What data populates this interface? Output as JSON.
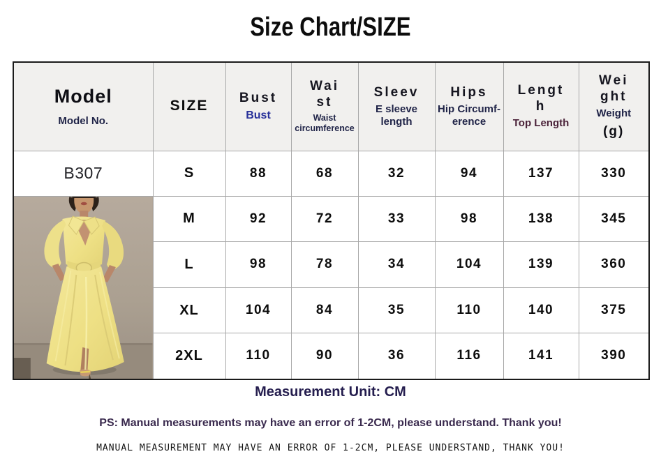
{
  "title": "Size Chart/SIZE",
  "colors": {
    "header_bg": "#f1f0ee",
    "grid_line": "#a8a8a8",
    "outer_border": "#1a1a1a",
    "navy": "#1f2347",
    "blue": "#273099",
    "maroon": "#4b2239",
    "footer_navy": "#241d4e",
    "footer_purple": "#3a2a4e",
    "dress_yellow": "#efe28c"
  },
  "table": {
    "model_no": "B307",
    "columns": [
      {
        "title_lines": [
          "Model"
        ],
        "subtitle_lines": [
          "Model No."
        ]
      },
      {
        "title_lines": [
          "SIZE"
        ],
        "subtitle_lines": []
      },
      {
        "title_lines": [
          "Bust"
        ],
        "subtitle_lines": [
          "Bust"
        ]
      },
      {
        "title_lines": [
          "Wai",
          "st"
        ],
        "subtitle_lines": [
          "Waist",
          "circumference"
        ]
      },
      {
        "title_lines": [
          "Sleev"
        ],
        "subtitle_lines": [
          "E sleeve",
          "length"
        ]
      },
      {
        "title_lines": [
          "Hips"
        ],
        "subtitle_lines": [
          "Hip Circumf-",
          "erence"
        ]
      },
      {
        "title_lines": [
          "Lengt",
          "h"
        ],
        "subtitle_lines": [
          "Top Length"
        ]
      },
      {
        "title_lines": [
          "Wei",
          "ght"
        ],
        "subtitle_lines": [
          "Weight"
        ],
        "extra": "(g)"
      }
    ],
    "rows": [
      {
        "size": "S",
        "values": [
          "88",
          "68",
          "32",
          "94",
          "137",
          "330"
        ]
      },
      {
        "size": "M",
        "values": [
          "92",
          "72",
          "33",
          "98",
          "138",
          "345"
        ]
      },
      {
        "size": "L",
        "values": [
          "98",
          "78",
          "34",
          "104",
          "139",
          "360"
        ]
      },
      {
        "size": "XL",
        "values": [
          "104",
          "84",
          "35",
          "110",
          "140",
          "375"
        ]
      },
      {
        "size": "2XL",
        "values": [
          "110",
          "90",
          "36",
          "116",
          "141",
          "390"
        ]
      }
    ]
  },
  "footer": {
    "unit": "Measurement Unit: CM",
    "ps": "PS: Manual measurements may have an error of 1-2CM, please understand. Thank you!",
    "ps_caps": "MANUAL MEASUREMENT MAY HAVE AN ERROR OF 1-2CM, PLEASE UNDERSTAND, THANK YOU!"
  }
}
